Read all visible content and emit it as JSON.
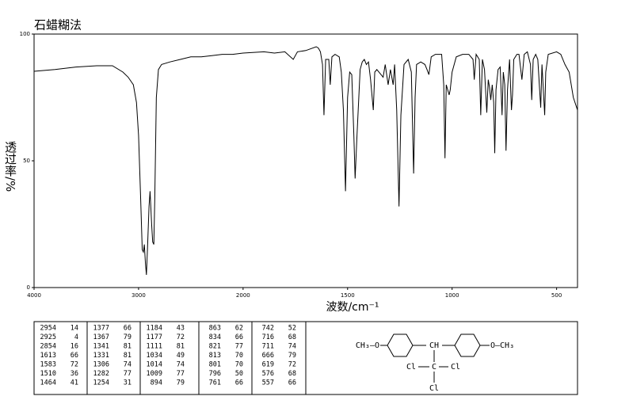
{
  "chart_data": {
    "type": "line",
    "title": "石蜡糊法",
    "xlabel": "波数/cm⁻¹",
    "ylabel": "透过率/%",
    "color": "#000000",
    "xlim": [
      4000,
      400
    ],
    "xticks": [
      4000,
      3000,
      2000,
      1500,
      1000,
      500
    ],
    "ylim": [
      0,
      100
    ],
    "yticks": [
      0,
      50,
      100
    ],
    "x": [
      4000,
      3800,
      3600,
      3400,
      3250,
      3150,
      3100,
      3050,
      3020,
      3000,
      2980,
      2965,
      2954,
      2945,
      2935,
      2925,
      2915,
      2900,
      2890,
      2875,
      2865,
      2854,
      2845,
      2830,
      2810,
      2780,
      2700,
      2600,
      2500,
      2400,
      2300,
      2200,
      2100,
      2000,
      1900,
      1850,
      1800,
      1760,
      1740,
      1700,
      1650,
      1640,
      1630,
      1620,
      1613,
      1605,
      1590,
      1583,
      1575,
      1560,
      1540,
      1530,
      1520,
      1510,
      1500,
      1490,
      1480,
      1470,
      1464,
      1455,
      1440,
      1430,
      1420,
      1410,
      1400,
      1390,
      1377,
      1370,
      1360,
      1340,
      1330,
      1320,
      1306,
      1295,
      1282,
      1275,
      1265,
      1254,
      1245,
      1230,
      1210,
      1195,
      1184,
      1177,
      1170,
      1150,
      1130,
      1120,
      1111,
      1100,
      1080,
      1050,
      1040,
      1034,
      1028,
      1014,
      1009,
      1000,
      980,
      950,
      920,
      900,
      894,
      885,
      870,
      863,
      855,
      845,
      834,
      827,
      821,
      815,
      808,
      801,
      796,
      790,
      780,
      770,
      761,
      755,
      748,
      742,
      735,
      725,
      716,
      711,
      705,
      690,
      680,
      666,
      655,
      640,
      625,
      619,
      612,
      600,
      590,
      576,
      570,
      557,
      552,
      540,
      500,
      480,
      460,
      440,
      420,
      400
    ],
    "values": [
      85.3,
      86,
      87,
      87.5,
      87.5,
      85,
      83,
      80,
      73,
      60,
      35,
      15,
      14,
      17,
      10,
      5,
      15,
      32,
      38,
      25,
      18,
      17,
      35,
      75,
      86,
      88,
      89,
      90,
      91,
      91,
      91.5,
      92,
      92,
      92.5,
      93,
      92.5,
      93,
      90,
      93,
      93.5,
      95,
      94.5,
      93,
      88,
      68,
      90,
      90,
      80,
      91,
      92,
      91,
      85,
      70,
      38,
      75,
      85,
      84,
      60,
      43,
      60,
      86,
      89,
      90,
      88,
      89,
      82,
      70,
      85,
      86,
      84,
      83,
      88,
      80,
      86,
      80,
      88,
      70,
      32,
      68,
      88,
      90,
      85,
      45,
      75,
      88,
      89,
      88,
      86,
      84,
      91,
      92,
      92,
      80,
      51,
      80,
      76,
      78,
      85,
      91,
      92,
      92,
      90,
      82,
      92,
      90,
      68,
      90,
      86,
      69,
      82,
      79,
      74,
      80,
      73,
      53,
      78,
      86,
      87,
      68,
      85,
      80,
      54,
      78,
      90,
      70,
      76,
      90,
      92,
      92,
      82,
      92,
      93,
      88,
      74,
      90,
      92,
      90,
      71,
      88,
      68,
      85,
      92,
      93,
      92,
      88,
      85,
      75,
      70
    ]
  },
  "peak_table": {
    "peaks": [
      [
        2954,
        14
      ],
      [
        2925,
        4
      ],
      [
        2854,
        16
      ],
      [
        1613,
        66
      ],
      [
        1583,
        72
      ],
      [
        1510,
        36
      ],
      [
        1464,
        41
      ],
      [
        1377,
        66
      ],
      [
        1367,
        79
      ],
      [
        1341,
        81
      ],
      [
        1331,
        81
      ],
      [
        1306,
        74
      ],
      [
        1282,
        77
      ],
      [
        1254,
        31
      ],
      [
        1184,
        43
      ],
      [
        1177,
        72
      ],
      [
        1111,
        81
      ],
      [
        1034,
        49
      ],
      [
        1014,
        74
      ],
      [
        1009,
        77
      ],
      [
        894,
        79
      ],
      [
        863,
        62
      ],
      [
        834,
        66
      ],
      [
        821,
        77
      ],
      [
        813,
        70
      ],
      [
        801,
        70
      ],
      [
        796,
        50
      ],
      [
        761,
        66
      ],
      [
        742,
        52
      ],
      [
        716,
        68
      ],
      [
        711,
        74
      ],
      [
        666,
        79
      ],
      [
        619,
        72
      ],
      [
        576,
        68
      ],
      [
        557,
        66
      ]
    ]
  },
  "structure": {
    "left_group": "CH₃—O",
    "center": "CH",
    "right_group": "O—CH₃",
    "chlorine_left": "Cl",
    "carbon": "C",
    "chlorine_right": "Cl",
    "chlorine_bottom": "Cl"
  }
}
